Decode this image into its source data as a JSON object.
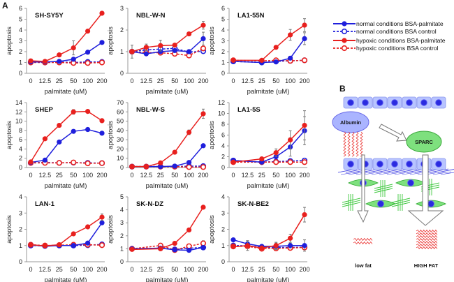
{
  "figure": {
    "panel_a_label": "A",
    "panel_b_label": "B"
  },
  "legend": {
    "entries": [
      {
        "label": "normal conditions BSA-palmitate",
        "color": "#1f1fdc",
        "dashed": false,
        "filled": true
      },
      {
        "label": "normal conditions BSA control",
        "color": "#1f1fdc",
        "dashed": true,
        "filled": false
      },
      {
        "label": "hypoxic conditions BSA-palmitate",
        "color": "#e8201e",
        "dashed": false,
        "filled": true
      },
      {
        "label": "hypoxic conditions BSA control",
        "color": "#e8201e",
        "dashed": true,
        "filled": false
      }
    ]
  },
  "diagram": {
    "albumin_label": "Albumin",
    "sparc_label": "SPARC",
    "low_fat_label": "low fat",
    "high_fat_label": "HIGH FAT",
    "colors": {
      "epithelial": "#b8c4ff",
      "nucleus": "#2a2ae0",
      "stromal": "#3ec83e",
      "fat": "#e8201e",
      "sparc_fill": "#7ee07e",
      "albumin_fill": "#aab4ff"
    }
  },
  "chart_data": [
    {
      "type": "line",
      "title": "SH-SY5Y",
      "xlabel": "palmitate (uM)",
      "ylabel": "apoptosis",
      "categories": [
        "0",
        "12.5",
        "25",
        "50",
        "100",
        "200"
      ],
      "ylim": [
        0,
        6
      ],
      "yticks": [
        0,
        1,
        2,
        3,
        4,
        5,
        6
      ],
      "series": [
        {
          "name": "normal conditions BSA-palmitate",
          "values": [
            1.05,
            1.05,
            1.1,
            1.3,
            1.95,
            2.85
          ]
        },
        {
          "name": "normal conditions BSA control",
          "values": [
            1.05,
            1.0,
            1.05,
            1.0,
            1.05,
            1.05
          ]
        },
        {
          "name": "hypoxic conditions BSA-palmitate",
          "values": [
            1.15,
            1.1,
            1.7,
            2.35,
            3.9,
            5.55
          ],
          "errors": [
            0,
            0,
            0,
            0.65,
            0,
            0
          ]
        },
        {
          "name": "hypoxic conditions BSA control",
          "values": [
            1.0,
            1.0,
            1.0,
            0.95,
            0.95,
            1.0
          ]
        }
      ]
    },
    {
      "type": "line",
      "title": "NBL-W-N",
      "xlabel": "palmitate (uM)",
      "ylabel": "apoptosis",
      "categories": [
        "0",
        "12.5",
        "25",
        "50",
        "100",
        "200"
      ],
      "ylim": [
        0,
        3
      ],
      "yticks": [
        0,
        1,
        2,
        3
      ],
      "series": [
        {
          "name": "normal conditions BSA-palmitate",
          "values": [
            1.0,
            0.9,
            1.0,
            1.05,
            1.0,
            1.6
          ],
          "errors": [
            0.3,
            0,
            0,
            0,
            0,
            0.3
          ]
        },
        {
          "name": "normal conditions BSA control",
          "values": [
            1.0,
            1.08,
            1.12,
            1.15,
            0.98,
            1.02
          ]
        },
        {
          "name": "hypoxic conditions BSA-palmitate",
          "values": [
            1.0,
            1.2,
            1.28,
            1.3,
            1.82,
            2.22
          ],
          "errors": [
            0,
            0.15,
            0.25,
            0,
            0.08,
            0.18
          ]
        },
        {
          "name": "hypoxic conditions BSA control",
          "values": [
            1.0,
            0.95,
            0.95,
            0.9,
            0.82,
            1.15
          ]
        }
      ]
    },
    {
      "type": "line",
      "title": "LA1-55N",
      "xlabel": "palmitate (uM)",
      "ylabel": "apoptosis",
      "categories": [
        "0",
        "12.5",
        "25",
        "50",
        "100",
        "200"
      ],
      "ylim": [
        0,
        6
      ],
      "yticks": [
        0,
        1,
        2,
        3,
        4,
        5,
        6
      ],
      "series": [
        {
          "name": "normal conditions BSA-palmitate",
          "values": [
            1.1,
            null,
            1.0,
            1.05,
            1.4,
            3.2
          ],
          "errors": [
            0,
            0,
            0,
            0,
            0,
            0.55
          ]
        },
        {
          "name": "normal conditions BSA control",
          "values": [
            1.1,
            null,
            1.0,
            1.1,
            1.15,
            1.2
          ]
        },
        {
          "name": "hypoxic conditions BSA-palmitate",
          "values": [
            1.2,
            null,
            1.2,
            2.4,
            3.55,
            4.45
          ],
          "errors": [
            0,
            0,
            0,
            0,
            0.5,
            0.6
          ]
        },
        {
          "name": "hypoxic conditions BSA control",
          "values": [
            1.2,
            null,
            1.15,
            1.2,
            1.15,
            1.2
          ]
        }
      ]
    },
    {
      "type": "line",
      "title": "SHEP",
      "xlabel": "palmitate (uM)",
      "ylabel": "apoptosis",
      "categories": [
        "0",
        "12.5",
        "25",
        "50",
        "100",
        "200"
      ],
      "ylim": [
        0,
        14
      ],
      "yticks": [
        0,
        2,
        4,
        6,
        8,
        10,
        12,
        14
      ],
      "series": [
        {
          "name": "normal conditions BSA-palmitate",
          "values": [
            1.1,
            1.6,
            5.5,
            7.8,
            8.2,
            7.4
          ]
        },
        {
          "name": "normal conditions BSA control",
          "values": [
            1.0,
            1.1,
            1.0,
            1.05,
            1.0,
            0.95
          ]
        },
        {
          "name": "hypoxic conditions BSA-palmitate",
          "values": [
            1.2,
            6.2,
            9.1,
            12.0,
            12.1,
            10.1
          ],
          "errors": [
            0,
            0,
            0,
            0.5,
            0,
            0
          ]
        },
        {
          "name": "hypoxic conditions BSA control",
          "values": [
            1.0,
            1.0,
            1.0,
            1.1,
            0.9,
            0.95
          ]
        }
      ]
    },
    {
      "type": "line",
      "title": "NBL-W-S",
      "xlabel": "palmitate (uM)",
      "ylabel": "apoptosis",
      "categories": [
        "0",
        "12.5",
        "25",
        "50",
        "100",
        "200"
      ],
      "ylim": [
        0,
        70
      ],
      "yticks": [
        0,
        10,
        20,
        30,
        40,
        50,
        60,
        70
      ],
      "series": [
        {
          "name": "normal conditions BSA-palmitate",
          "values": [
            1.0,
            1.0,
            1.0,
            1.5,
            5.5,
            23.5
          ]
        },
        {
          "name": "normal conditions BSA control",
          "values": [
            1.0,
            1.0,
            1.0,
            1.0,
            1.5,
            1.5
          ]
        },
        {
          "name": "hypoxic conditions BSA-palmitate",
          "values": [
            1.0,
            1.0,
            5.0,
            16.5,
            38.0,
            58.0
          ],
          "errors": [
            0,
            0,
            0,
            0,
            2.5,
            5.0
          ]
        },
        {
          "name": "hypoxic conditions BSA control",
          "values": [
            1.0,
            1.0,
            1.0,
            1.0,
            0.5,
            0.5
          ]
        }
      ]
    },
    {
      "type": "line",
      "title": "LA1-5S",
      "xlabel": "palmitate (uM)",
      "ylabel": "apoptosis",
      "categories": [
        "0",
        "12.5",
        "25",
        "50",
        "100",
        "200"
      ],
      "ylim": [
        0,
        12
      ],
      "yticks": [
        0,
        2,
        4,
        6,
        8,
        10,
        12
      ],
      "series": [
        {
          "name": "normal conditions BSA-palmitate",
          "values": [
            1.3,
            null,
            1.0,
            2.0,
            3.8,
            6.8
          ],
          "errors": [
            0,
            0,
            0,
            0,
            1.7,
            2.6
          ]
        },
        {
          "name": "normal conditions BSA control",
          "values": [
            1.3,
            null,
            1.0,
            1.1,
            1.2,
            1.3
          ]
        },
        {
          "name": "hypoxic conditions BSA-palmitate",
          "values": [
            1.0,
            null,
            1.6,
            2.75,
            5.1,
            7.8
          ],
          "errors": [
            0,
            0,
            0,
            0.7,
            1.7,
            2.7
          ]
        },
        {
          "name": "hypoxic conditions BSA control",
          "values": [
            1.0,
            null,
            1.0,
            1.0,
            1.0,
            1.0
          ]
        }
      ]
    },
    {
      "type": "line",
      "title": "LAN-1",
      "xlabel": "palmitate (uM)",
      "ylabel": "apoptosis",
      "categories": [
        "0",
        "12.5",
        "25",
        "50",
        "100",
        "200"
      ],
      "ylim": [
        0,
        4
      ],
      "yticks": [
        0,
        1,
        2,
        3,
        4
      ],
      "series": [
        {
          "name": "normal conditions BSA-palmitate",
          "values": [
            1.05,
            0.95,
            1.0,
            1.0,
            1.15,
            2.4
          ]
        },
        {
          "name": "normal conditions BSA control",
          "values": [
            1.0,
            0.98,
            1.0,
            1.0,
            1.02,
            1.07
          ]
        },
        {
          "name": "hypoxic conditions BSA-palmitate",
          "values": [
            1.05,
            0.98,
            1.05,
            1.72,
            2.15,
            2.75
          ],
          "errors": [
            0,
            0,
            0,
            0,
            0,
            0.2
          ]
        },
        {
          "name": "hypoxic conditions BSA control",
          "values": [
            1.05,
            1.0,
            1.02,
            1.05,
            1.05,
            1.02
          ]
        }
      ]
    },
    {
      "type": "line",
      "title": "SK-N-DZ",
      "xlabel": "palmitate (uM)",
      "ylabel": "apoptosis",
      "categories": [
        "0",
        "12.5",
        "25",
        "50",
        "100",
        "200"
      ],
      "ylim": [
        0,
        5
      ],
      "yticks": [
        0,
        1,
        2,
        3,
        4,
        5
      ],
      "series": [
        {
          "name": "normal conditions BSA-palmitate",
          "values": [
            1.0,
            null,
            1.05,
            0.92,
            0.88,
            1.1
          ]
        },
        {
          "name": "normal conditions BSA control",
          "values": [
            1.0,
            null,
            1.05,
            0.95,
            1.05,
            1.1
          ]
        },
        {
          "name": "hypoxic conditions BSA-palmitate",
          "values": [
            0.95,
            null,
            1.0,
            1.42,
            2.45,
            4.2
          ]
        },
        {
          "name": "hypoxic conditions BSA control",
          "values": [
            1.0,
            null,
            1.25,
            0.9,
            1.2,
            1.42
          ],
          "errors": [
            0,
            0,
            0,
            0,
            0,
            0.2
          ]
        }
      ]
    },
    {
      "type": "line",
      "title": "SK-N-BE2",
      "xlabel": "palmitate (uM)",
      "ylabel": "apoptosis",
      "categories": [
        "0",
        "12.5",
        "25",
        "50",
        "100",
        "200"
      ],
      "ylim": [
        0,
        4
      ],
      "yticks": [
        0,
        1,
        2,
        3,
        4
      ],
      "series": [
        {
          "name": "normal conditions BSA-palmitate",
          "values": [
            1.35,
            1.1,
            0.95,
            0.95,
            1.0,
            1.0
          ],
          "errors": [
            0,
            0.2,
            0,
            0.2,
            0.15,
            0.35
          ]
        },
        {
          "name": "normal conditions BSA control",
          "values": [
            1.0,
            0.98,
            0.9,
            0.88,
            0.88,
            0.9
          ]
        },
        {
          "name": "hypoxic conditions BSA-palmitate",
          "values": [
            0.92,
            1.0,
            0.85,
            1.0,
            1.45,
            2.9
          ],
          "errors": [
            0,
            0.3,
            0,
            0.2,
            0.25,
            0.45
          ]
        },
        {
          "name": "hypoxic conditions BSA control",
          "values": [
            0.95,
            0.95,
            0.8,
            0.82,
            0.85,
            0.88
          ]
        }
      ]
    }
  ]
}
